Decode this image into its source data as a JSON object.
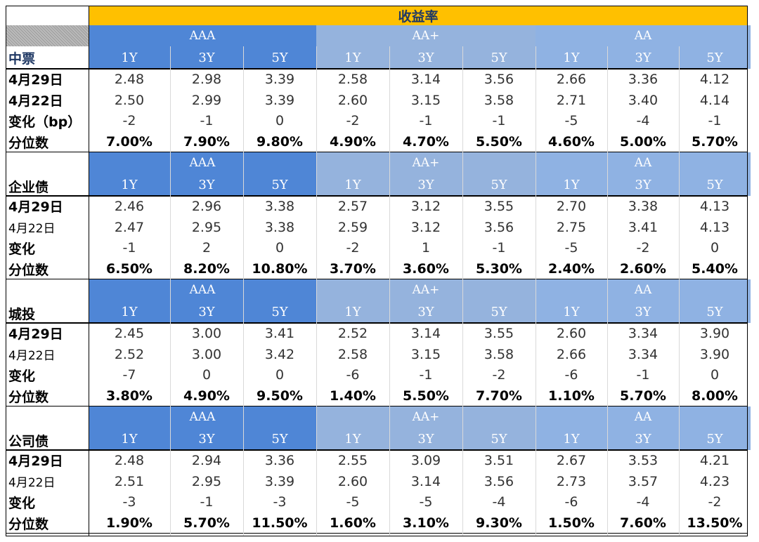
{
  "title": "收益率",
  "rating_groups": [
    "AAA",
    "AA+",
    "AA"
  ],
  "tenors": [
    "1Y",
    "3Y",
    "5Y"
  ],
  "colors": {
    "title_bg": "#ffc000",
    "aaa_bg": "#4f86d6",
    "aa_plus_bg": "#95b3dd",
    "aa_bg": "#8fb2e3"
  },
  "sections": [
    {
      "name": "中票",
      "rows": [
        {
          "label": "4月29日",
          "style": "bold",
          "values": [
            "2.48",
            "2.98",
            "3.39",
            "2.58",
            "3.14",
            "3.56",
            "2.66",
            "3.36",
            "4.12"
          ]
        },
        {
          "label": "4月22日",
          "style": "bold",
          "values": [
            "2.50",
            "2.99",
            "3.39",
            "2.60",
            "3.15",
            "3.58",
            "2.71",
            "3.40",
            "4.14"
          ]
        },
        {
          "label": "变化（bp）",
          "style": "bold",
          "values": [
            "-2",
            "-1",
            "0",
            "-2",
            "-1",
            "-1",
            "-5",
            "-4",
            "-1"
          ]
        },
        {
          "label": "分位数",
          "style": "bold",
          "pct": true,
          "values": [
            "7.00%",
            "7.90%",
            "9.80%",
            "4.90%",
            "4.70%",
            "5.50%",
            "4.60%",
            "5.00%",
            "5.70%"
          ]
        }
      ]
    },
    {
      "name": "企业债",
      "rows": [
        {
          "label": "4月29日",
          "style": "bold",
          "values": [
            "2.46",
            "2.96",
            "3.38",
            "2.57",
            "3.12",
            "3.55",
            "2.70",
            "3.38",
            "4.13"
          ]
        },
        {
          "label": "4月22日",
          "style": "plain",
          "values": [
            "2.47",
            "2.95",
            "3.38",
            "2.59",
            "3.12",
            "3.56",
            "2.75",
            "3.41",
            "4.13"
          ]
        },
        {
          "label": "变化",
          "style": "bold",
          "values": [
            "-1",
            "2",
            "0",
            "-2",
            "1",
            "-1",
            "-5",
            "-2",
            "0"
          ]
        },
        {
          "label": "分位数",
          "style": "bold",
          "pct": true,
          "values": [
            "6.50%",
            "8.20%",
            "10.80%",
            "3.70%",
            "3.60%",
            "5.30%",
            "2.40%",
            "2.60%",
            "5.40%"
          ]
        }
      ]
    },
    {
      "name": "城投",
      "rows": [
        {
          "label": "4月29日",
          "style": "bold",
          "values": [
            "2.45",
            "3.00",
            "3.41",
            "2.52",
            "3.14",
            "3.55",
            "2.60",
            "3.34",
            "3.90"
          ]
        },
        {
          "label": "4月22日",
          "style": "plain",
          "values": [
            "2.52",
            "3.00",
            "3.42",
            "2.58",
            "3.15",
            "3.58",
            "2.66",
            "3.34",
            "3.90"
          ]
        },
        {
          "label": "变化",
          "style": "bold",
          "values": [
            "-7",
            "0",
            "0",
            "-6",
            "-1",
            "-2",
            "-6",
            "-1",
            "0"
          ]
        },
        {
          "label": "分位数",
          "style": "bold",
          "pct": true,
          "values": [
            "3.80%",
            "4.90%",
            "9.50%",
            "1.40%",
            "5.50%",
            "7.70%",
            "1.10%",
            "5.70%",
            "8.00%"
          ]
        }
      ]
    },
    {
      "name": "公司债",
      "rows": [
        {
          "label": "4月29日",
          "style": "bold",
          "values": [
            "2.48",
            "2.94",
            "3.36",
            "2.55",
            "3.09",
            "3.51",
            "2.67",
            "3.53",
            "4.21"
          ]
        },
        {
          "label": "4月22日",
          "style": "plain",
          "values": [
            "2.51",
            "2.95",
            "3.39",
            "2.60",
            "3.14",
            "3.56",
            "2.73",
            "3.57",
            "4.23"
          ]
        },
        {
          "label": "变化",
          "style": "bold",
          "values": [
            "-3",
            "-1",
            "-3",
            "-5",
            "-5",
            "-4",
            "-6",
            "-4",
            "-2"
          ]
        },
        {
          "label": "分位数",
          "style": "bold",
          "pct": true,
          "values": [
            "1.90%",
            "5.70%",
            "11.50%",
            "1.60%",
            "3.10%",
            "9.30%",
            "1.50%",
            "7.60%",
            "13.50%"
          ]
        }
      ]
    }
  ]
}
